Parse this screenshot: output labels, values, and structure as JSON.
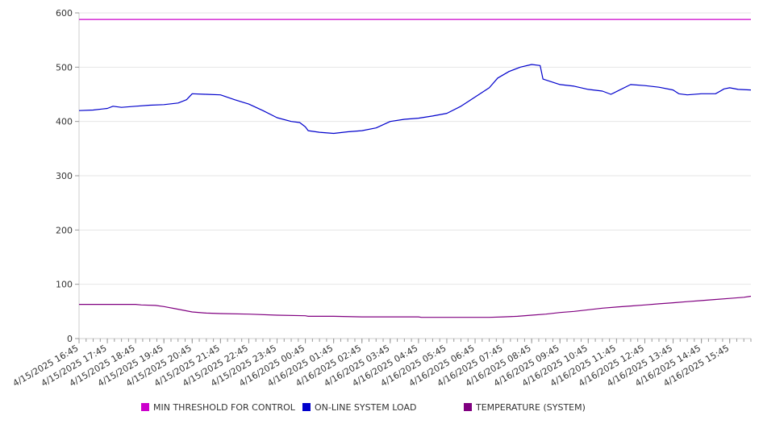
{
  "chart_data": {
    "type": "line",
    "x_ticks": [
      "4/15/2025 16:45",
      "4/15/2025 17:45",
      "4/15/2025 18:45",
      "4/15/2025 19:45",
      "4/15/2025 20:45",
      "4/15/2025 21:45",
      "4/15/2025 22:45",
      "4/15/2025 23:45",
      "4/16/2025 00:45",
      "4/16/2025 01:45",
      "4/16/2025 02:45",
      "4/16/2025 03:45",
      "4/16/2025 04:45",
      "4/16/2025 05:45",
      "4/16/2025 06:45",
      "4/16/2025 07:45",
      "4/16/2025 08:45",
      "4/16/2025 09:45",
      "4/16/2025 10:45",
      "4/16/2025 11:45",
      "4/16/2025 12:45",
      "4/16/2025 13:45",
      "4/16/2025 14:45",
      "4/16/2025 15:45"
    ],
    "y_ticks": [
      "0",
      "100",
      "200",
      "300",
      "400",
      "500",
      "600"
    ],
    "ylim": [
      0,
      600
    ],
    "xlim": [
      0,
      23.75
    ],
    "grid": true,
    "legend_position": "bottom",
    "series": [
      {
        "name": "MIN THRESHOLD FOR CONTROL",
        "color": "#cc00cc",
        "points": [
          [
            0,
            588
          ],
          [
            23.75,
            588
          ]
        ]
      },
      {
        "name": "ON-LINE SYSTEM LOAD",
        "color": "#0000cc",
        "points": [
          [
            0,
            420
          ],
          [
            0.5,
            421
          ],
          [
            1,
            424
          ],
          [
            1.2,
            428
          ],
          [
            1.5,
            426
          ],
          [
            2,
            428
          ],
          [
            2.5,
            430
          ],
          [
            3,
            431
          ],
          [
            3.5,
            434
          ],
          [
            3.8,
            440
          ],
          [
            4,
            451
          ],
          [
            4.5,
            450
          ],
          [
            5,
            449
          ],
          [
            5.5,
            440
          ],
          [
            6,
            432
          ],
          [
            6.5,
            420
          ],
          [
            7,
            407
          ],
          [
            7.5,
            400
          ],
          [
            7.8,
            398
          ],
          [
            8,
            390
          ],
          [
            8.1,
            383
          ],
          [
            8.5,
            380
          ],
          [
            9,
            378
          ],
          [
            9.5,
            381
          ],
          [
            10,
            383
          ],
          [
            10.5,
            388
          ],
          [
            11,
            400
          ],
          [
            11.5,
            404
          ],
          [
            12,
            406
          ],
          [
            12.5,
            410
          ],
          [
            13,
            415
          ],
          [
            13.5,
            428
          ],
          [
            14,
            445
          ],
          [
            14.5,
            462
          ],
          [
            14.8,
            480
          ],
          [
            15.2,
            492
          ],
          [
            15.6,
            500
          ],
          [
            16,
            505
          ],
          [
            16.3,
            503
          ],
          [
            16.4,
            478
          ],
          [
            17,
            468
          ],
          [
            17.5,
            465
          ],
          [
            18,
            459
          ],
          [
            18.5,
            456
          ],
          [
            18.8,
            450
          ],
          [
            19,
            455
          ],
          [
            19.5,
            468
          ],
          [
            20,
            466
          ],
          [
            20.5,
            463
          ],
          [
            21,
            458
          ],
          [
            21.2,
            451
          ],
          [
            21.5,
            449
          ],
          [
            22,
            451
          ],
          [
            22.5,
            451
          ],
          [
            22.8,
            460
          ],
          [
            23,
            462
          ],
          [
            23.3,
            459
          ],
          [
            23.75,
            458
          ]
        ]
      },
      {
        "name": "TEMPERATURE (SYSTEM)",
        "color": "#800080",
        "points": [
          [
            0,
            63
          ],
          [
            1,
            63
          ],
          [
            2,
            63
          ],
          [
            2.2,
            62
          ],
          [
            2.7,
            61
          ],
          [
            3,
            59
          ],
          [
            3.5,
            54
          ],
          [
            4,
            49
          ],
          [
            4.5,
            47
          ],
          [
            5,
            46
          ],
          [
            6,
            45
          ],
          [
            7,
            43
          ],
          [
            8,
            42
          ],
          [
            8.1,
            41
          ],
          [
            9,
            41
          ],
          [
            10,
            40
          ],
          [
            11,
            40
          ],
          [
            12,
            40
          ],
          [
            12.1,
            39
          ],
          [
            13,
            39
          ],
          [
            14,
            39
          ],
          [
            14.5,
            39
          ],
          [
            15,
            40
          ],
          [
            15.5,
            41
          ],
          [
            16,
            43
          ],
          [
            16.5,
            45
          ],
          [
            17,
            48
          ],
          [
            17.5,
            50
          ],
          [
            18,
            53
          ],
          [
            18.5,
            56
          ],
          [
            19,
            58
          ],
          [
            19.5,
            60
          ],
          [
            20,
            62
          ],
          [
            20.5,
            64
          ],
          [
            21,
            66
          ],
          [
            21.5,
            68
          ],
          [
            22,
            70
          ],
          [
            22.5,
            72
          ],
          [
            23,
            74
          ],
          [
            23.5,
            76
          ],
          [
            23.75,
            78
          ]
        ]
      }
    ]
  }
}
